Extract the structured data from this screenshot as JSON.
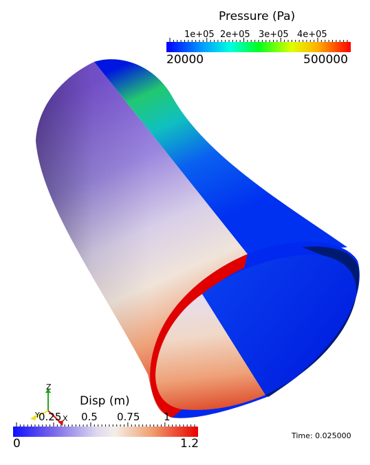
{
  "pressure_bar": {
    "title": "Pressure (Pa)",
    "tick_labels": [
      "1e+05",
      "2e+05",
      "3e+05",
      "4e+05"
    ],
    "min_label": "20000",
    "max_label": "500000",
    "colormap": "rainbow (blue to red)"
  },
  "disp_bar": {
    "title": "Disp (m)",
    "tick_labels": [
      "0.25",
      "0.5",
      "0.75",
      "1"
    ],
    "min_label": "0",
    "max_label": "1.2",
    "colormap": "cool to warm (blue-white-red)"
  },
  "axes": {
    "x_label": "X",
    "y_label": "Y",
    "z_label": "Z"
  },
  "time_annotation": "Time: 0.025000",
  "colors": {
    "pressure_low": "#0018ff",
    "pressure_mid": "#00ff40",
    "pressure_high": "#ff0000",
    "disp_low": "#2a2aff",
    "disp_mid": "#f4f4f4",
    "disp_high": "#e00000"
  }
}
